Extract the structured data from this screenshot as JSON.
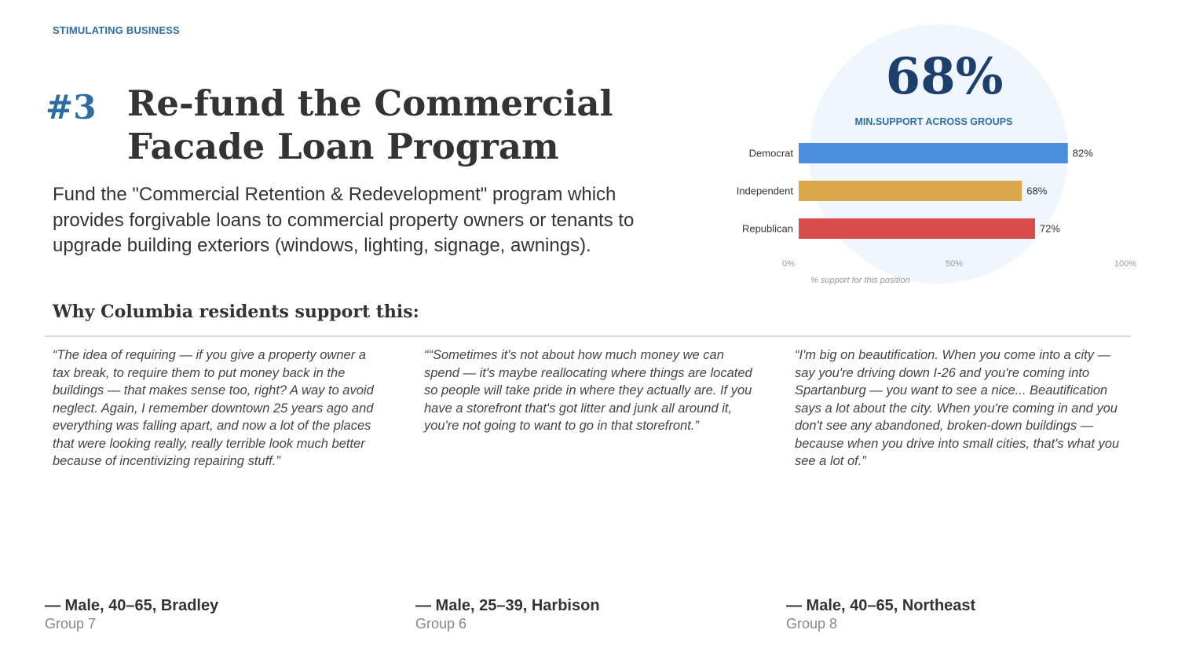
{
  "section": "STIMULATING BUSINESS",
  "rank": "#3",
  "title": "Re-fund the Commercial Facade Loan Program",
  "description": "Fund the \"Commercial Retention & Redevelopment\" program which provides forgivable loans to commercial property owners or tenants to upgrade building exteriors (windows, lighting, signage, awnings).",
  "summary": {
    "value": "68%",
    "label": "MIN.SUPPORT ACROSS GROUPS"
  },
  "why_heading": "Why Columbia residents support this:",
  "quotes": [
    {
      "text": "“The idea of requiring — if you give a property owner a tax break, to require them to put money back in the buildings — that makes sense too, right? A way to avoid neglect. Again, I remember downtown 25 years ago and everything was falling apart, and now a lot of the places that were looking really, really terrible look much better because of incentivizing repairing stuff.”",
      "attribution": "— Male, 40–65, Bradley",
      "group": "Group 7"
    },
    {
      "text": "““Sometimes it's not about how much money we can spend — it's maybe reallocating where things are located so people will take pride in where they actually are. If you have a storefront that's got litter and junk all around it, you're not going to want to go in that storefront.”",
      "attribution": "— Male, 25–39, Harbison",
      "group": "Group 6"
    },
    {
      "text": "“I'm big on beautification. When you come into a city — say you're driving down I-26 and you're coming into Spartanburg — you want to see a nice... Beautification says a lot about the city. When you're coming in and you don't see any abandoned, broken-down buildings — because when you drive into small cities, that's what you see a lot of.”",
      "attribution": "— Male, 40–65, Northeast",
      "group": "Group 8"
    }
  ],
  "chart_data": {
    "type": "bar",
    "orientation": "horizontal",
    "categories": [
      "Democrat",
      "Independent",
      "Republican"
    ],
    "values": [
      82,
      68,
      72
    ],
    "value_labels": [
      "82%",
      "68%",
      "72%"
    ],
    "colors": [
      "#4a8fdb",
      "#daa84a",
      "#d94c4c"
    ],
    "xlim": [
      0,
      100
    ],
    "xticks": [
      "0%",
      "50%",
      "100%"
    ],
    "xlabel": "% support for this position",
    "grid": false
  }
}
